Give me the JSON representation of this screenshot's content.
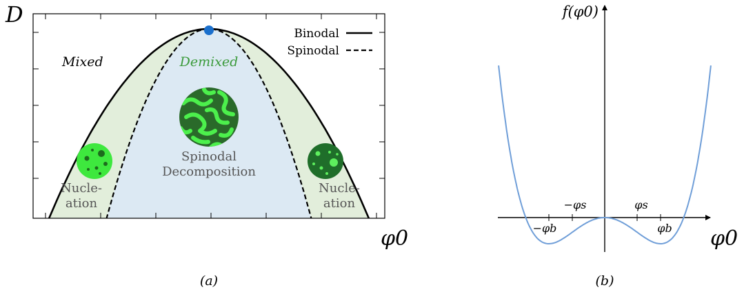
{
  "panel_a": {
    "ylabel": "D",
    "xlabel": "φ0",
    "caption": "(a)",
    "region_labels": {
      "mixed": "Mixed",
      "demixed": "Demixed",
      "spinodal_line1": "Spinodal",
      "spinodal_line2": "Decomposition",
      "nucleation_line1": "Nucle-",
      "nucleation_line2": "ation"
    },
    "legend": [
      {
        "label": "Binodal",
        "style": "solid"
      },
      {
        "label": "Spinodal",
        "style": "dashed"
      }
    ],
    "colors": {
      "binodal_fill": "#e2eedb",
      "spinodal_fill": "#dce9f3",
      "critical_point": "#1a6fcc",
      "demixed_text": "#3a9a3a",
      "region_text": "#555555"
    }
  },
  "panel_b": {
    "ylabel": "f(φ0)",
    "xlabel": "φ0",
    "caption": "(b)",
    "tick_labels": {
      "neg_phi_s": "−φs",
      "pos_phi_s": "φs",
      "neg_phi_b": "−φb",
      "pos_phi_b": "φb"
    },
    "colors": {
      "curve": "#6f9ed8"
    }
  },
  "chart_data": [
    {
      "type": "line",
      "title": "",
      "xlabel": "φ0",
      "ylabel": "D",
      "series": [
        {
          "name": "Binodal",
          "kind": "binodal",
          "x": [
            -1.0,
            -0.5,
            0.0,
            0.5,
            1.0
          ],
          "y": [
            0.0,
            0.75,
            1.0,
            0.75,
            0.0
          ]
        },
        {
          "name": "Spinodal",
          "kind": "spinodal",
          "x": [
            -0.64,
            -0.32,
            0.0,
            0.32,
            0.64
          ],
          "y": [
            0.0,
            0.75,
            1.0,
            0.75,
            0.0
          ]
        }
      ],
      "critical_point": {
        "x": 0.0,
        "y": 1.0
      },
      "grid": false,
      "legend": "top-right"
    },
    {
      "type": "line",
      "xlabel": "φ0",
      "ylabel": "f(φ0)",
      "double_well": {
        "phi_b": 1.0,
        "phi_s": 0.58,
        "min_value": -1.0
      },
      "x_range": [
        -1.9,
        1.9
      ],
      "grid": false
    }
  ]
}
